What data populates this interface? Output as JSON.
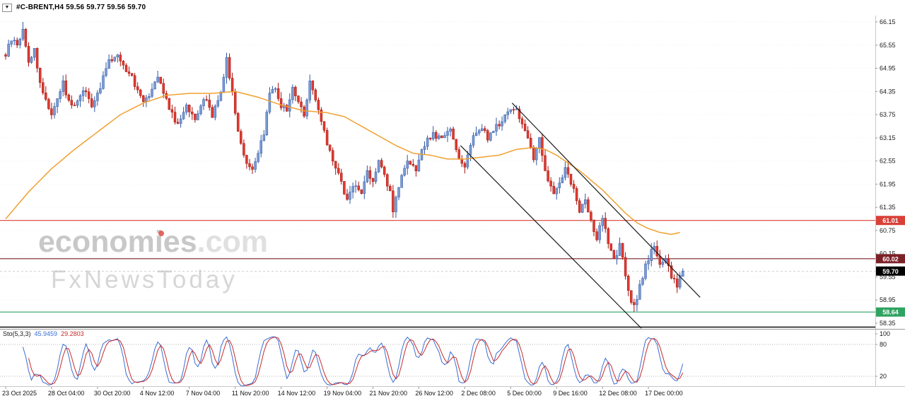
{
  "window": {
    "symbol_info": "#C-BRENT,H4 59.56 59.77 59.56 59.70",
    "dropdown_glyph": "▼"
  },
  "watermark": {
    "brand_bold": "economies",
    "brand_suffix": ".com",
    "tagline": "FxNewsToday"
  },
  "indicator": {
    "name": "Sto(5,3,3)",
    "value_main": "45.9459",
    "value_signal": "29.2803",
    "scale_labels": [
      "100",
      "80",
      "20"
    ],
    "scale_values": [
      100,
      80,
      20
    ]
  },
  "colors": {
    "bull_fill": "#7b9bd2",
    "bull_stroke": "#2f58a7",
    "bear_fill": "#e13a31",
    "bear_stroke": "#a2140d",
    "ma_line": "#f0a030",
    "trendline": "#1a1a1a",
    "level_red": "#d84038",
    "level_maroon": "#7c2128",
    "level_green": "#2fa360",
    "price_tag_black": "#000000",
    "sto_main": "#3a6ed5",
    "sto_signal": "#c92a2a",
    "axis_text": "#1a1a1a"
  },
  "chart_data": {
    "type": "candlestick",
    "symbol": "#C-BRENT",
    "timeframe": "H4",
    "last_ohlc": [
      59.56,
      59.77,
      59.56,
      59.7
    ],
    "bar_count": 237,
    "bars_per_xlabel": 16,
    "y_ticks": [
      66.15,
      65.55,
      64.95,
      64.35,
      63.75,
      63.15,
      62.55,
      61.95,
      61.35,
      60.75,
      60.15,
      59.55,
      58.95,
      58.35
    ],
    "x_labels": [
      "23 Oct 2025",
      "28 Oct 04:00",
      "30 Oct 20:00",
      "4 Nov 12:00",
      "7 Nov 04:00",
      "11 Nov 20:00",
      "14 Nov 12:00",
      "19 Nov 04:00",
      "21 Nov 20:00",
      "26 Nov 12:00",
      "2 Dec 08:00",
      "5 Dec 00:00",
      "9 Dec 16:00",
      "12 Dec 08:00",
      "17 Dec 00:00"
    ],
    "levels": [
      {
        "price": 61.01,
        "label": "61.01",
        "color": "#d84038",
        "tagged": true
      },
      {
        "price": 60.02,
        "label": "60.02",
        "color": "#7c2128",
        "tagged": true
      },
      {
        "price": 58.64,
        "label": "58.64",
        "color": "#2fa360",
        "tagged": true
      },
      {
        "price": 58.25,
        "label": "",
        "color": "#111111",
        "tagged": false
      }
    ],
    "current_price": {
      "value": 59.7,
      "label": "59.70"
    },
    "trendlines": [
      {
        "from": [
          176.5,
          64.05
        ],
        "to": [
          242,
          59.02
        ]
      },
      {
        "from": [
          158.5,
          62.95
        ],
        "to": [
          221.5,
          58.22
        ]
      }
    ],
    "ma_anchors": [
      [
        0,
        61.05
      ],
      [
        8,
        61.75
      ],
      [
        16,
        62.35
      ],
      [
        24,
        62.85
      ],
      [
        32,
        63.3
      ],
      [
        40,
        63.75
      ],
      [
        48,
        64.05
      ],
      [
        56,
        64.25
      ],
      [
        64,
        64.3
      ],
      [
        72,
        64.3
      ],
      [
        80,
        64.35
      ],
      [
        88,
        64.2
      ],
      [
        96,
        64.0
      ],
      [
        104,
        63.85
      ],
      [
        112,
        63.8
      ],
      [
        118,
        63.7
      ],
      [
        124,
        63.45
      ],
      [
        130,
        63.2
      ],
      [
        136,
        62.95
      ],
      [
        142,
        62.75
      ],
      [
        148,
        62.7
      ],
      [
        154,
        62.6
      ],
      [
        160,
        62.6
      ],
      [
        166,
        62.65
      ],
      [
        172,
        62.7
      ],
      [
        178,
        62.85
      ],
      [
        184,
        62.9
      ],
      [
        188,
        62.85
      ],
      [
        192,
        62.7
      ],
      [
        196,
        62.5
      ],
      [
        200,
        62.3
      ],
      [
        204,
        62.05
      ],
      [
        208,
        61.8
      ],
      [
        212,
        61.5
      ],
      [
        216,
        61.2
      ],
      [
        220,
        60.95
      ],
      [
        224,
        60.8
      ],
      [
        228,
        60.7
      ],
      [
        232,
        60.65
      ],
      [
        235,
        60.7
      ]
    ],
    "price_path": [
      [
        0,
        65.3
      ],
      [
        2,
        65.7
      ],
      [
        4,
        65.55
      ],
      [
        6,
        65.95
      ],
      [
        8,
        65.1
      ],
      [
        10,
        65.45
      ],
      [
        12,
        64.55
      ],
      [
        14,
        64.15
      ],
      [
        16,
        63.75
      ],
      [
        18,
        64.2
      ],
      [
        20,
        64.55
      ],
      [
        22,
        64.1
      ],
      [
        24,
        63.95
      ],
      [
        26,
        64.3
      ],
      [
        28,
        64.35
      ],
      [
        30,
        63.9
      ],
      [
        33,
        64.5
      ],
      [
        36,
        65.1
      ],
      [
        39,
        65.35
      ],
      [
        41,
        65.0
      ],
      [
        43,
        64.85
      ],
      [
        46,
        64.4
      ],
      [
        48,
        64.15
      ],
      [
        50,
        64.3
      ],
      [
        53,
        64.8
      ],
      [
        55,
        64.3
      ],
      [
        57,
        63.95
      ],
      [
        60,
        63.45
      ],
      [
        63,
        64.05
      ],
      [
        66,
        63.55
      ],
      [
        68,
        64.0
      ],
      [
        70,
        64.15
      ],
      [
        72,
        63.75
      ],
      [
        75,
        64.35
      ],
      [
        77,
        65.2
      ],
      [
        79,
        64.35
      ],
      [
        81,
        63.3
      ],
      [
        84,
        62.5
      ],
      [
        86,
        62.3
      ],
      [
        88,
        62.7
      ],
      [
        90,
        63.3
      ],
      [
        92,
        64.3
      ],
      [
        94,
        64.45
      ],
      [
        96,
        64.0
      ],
      [
        98,
        63.85
      ],
      [
        100,
        64.45
      ],
      [
        102,
        64.1
      ],
      [
        104,
        63.75
      ],
      [
        106,
        64.65
      ],
      [
        108,
        64.1
      ],
      [
        110,
        63.55
      ],
      [
        112,
        63.0
      ],
      [
        116,
        62.2
      ],
      [
        119,
        61.5
      ],
      [
        121,
        61.95
      ],
      [
        124,
        61.7
      ],
      [
        126,
        62.3
      ],
      [
        128,
        62.05
      ],
      [
        130,
        62.5
      ],
      [
        132,
        62.15
      ],
      [
        134,
        61.75
      ],
      [
        135,
        61.3
      ],
      [
        137,
        61.9
      ],
      [
        140,
        62.5
      ],
      [
        143,
        62.3
      ],
      [
        146,
        63.0
      ],
      [
        149,
        63.25
      ],
      [
        152,
        63.1
      ],
      [
        155,
        63.4
      ],
      [
        158,
        62.6
      ],
      [
        160,
        62.45
      ],
      [
        163,
        63.2
      ],
      [
        166,
        63.45
      ],
      [
        168,
        63.1
      ],
      [
        170,
        63.35
      ],
      [
        173,
        63.6
      ],
      [
        175,
        63.8
      ],
      [
        177,
        63.95
      ],
      [
        179,
        63.7
      ],
      [
        182,
        63.15
      ],
      [
        184,
        62.6
      ],
      [
        186,
        63.1
      ],
      [
        189,
        62.0
      ],
      [
        191,
        61.7
      ],
      [
        193,
        62.0
      ],
      [
        195,
        62.35
      ],
      [
        198,
        61.85
      ],
      [
        200,
        61.25
      ],
      [
        202,
        61.6
      ],
      [
        204,
        60.95
      ],
      [
        206,
        60.55
      ],
      [
        208,
        61.05
      ],
      [
        210,
        60.4
      ],
      [
        212,
        59.95
      ],
      [
        214,
        60.35
      ],
      [
        216,
        59.6
      ],
      [
        218,
        58.95
      ],
      [
        219,
        58.75
      ],
      [
        221,
        59.3
      ],
      [
        223,
        59.85
      ],
      [
        225,
        60.2
      ],
      [
        226,
        60.35
      ],
      [
        228,
        59.9
      ],
      [
        230,
        60.05
      ],
      [
        232,
        59.5
      ],
      [
        234,
        59.35
      ],
      [
        236,
        59.7
      ]
    ],
    "forced_extremes": {
      "highs": [
        [
          6,
          66.15
        ]
      ],
      "lows": [
        [
          135,
          61.08
        ],
        [
          219,
          58.64
        ]
      ]
    }
  }
}
